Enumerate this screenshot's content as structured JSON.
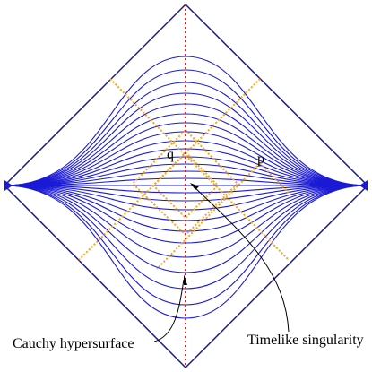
{
  "labels": {
    "q": "q",
    "p": "p",
    "cauchy": "Cauchy hypersurface",
    "singularity": "Timelike singularity"
  }
}
